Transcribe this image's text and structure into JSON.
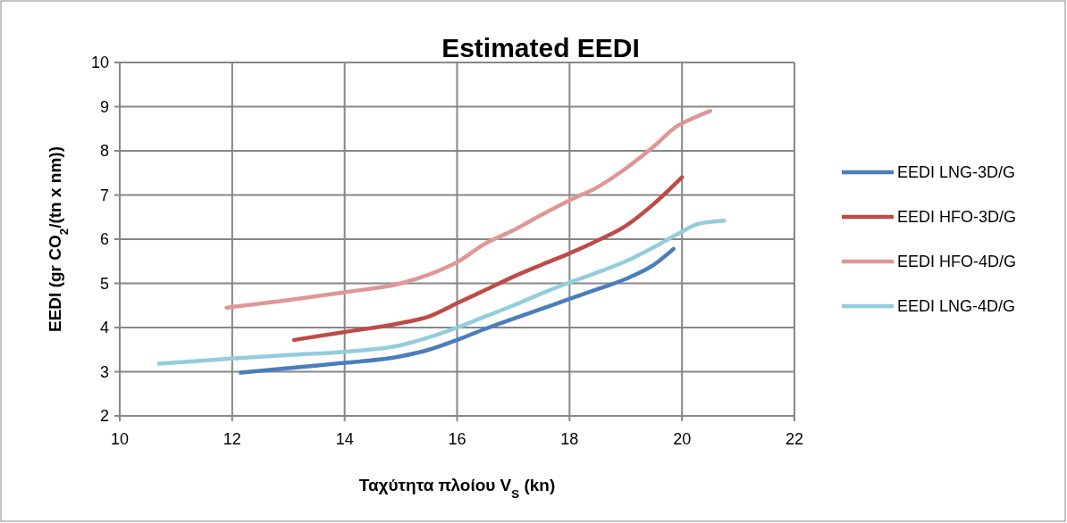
{
  "chart_data": {
    "type": "line",
    "title": "Estimated EEDI",
    "xlabel": "Ταχύτητα πλοίου V$_{S}$ (kn)",
    "ylabel": "EEDI (gr CO$_{2}$/(tn x nm))",
    "xlim": [
      10,
      22
    ],
    "xticks": [
      10,
      12,
      14,
      16,
      18,
      20,
      22
    ],
    "ylim": [
      2,
      10
    ],
    "yticks": [
      2,
      3,
      4,
      5,
      6,
      7,
      8,
      9,
      10
    ],
    "grid": true,
    "legend": "right",
    "marker": "none",
    "line_style": "solid",
    "series": [
      {
        "name": "EEDI LNG-3D/G",
        "color": "#4a7ebb",
        "x": [
          12.15,
          13,
          14,
          15,
          15.5,
          16,
          16.5,
          17,
          17.5,
          18,
          18.5,
          19,
          19.5,
          19.85
        ],
        "values": [
          2.98,
          3.08,
          3.2,
          3.35,
          3.5,
          3.72,
          3.97,
          4.2,
          4.42,
          4.65,
          4.87,
          5.1,
          5.42,
          5.78
        ]
      },
      {
        "name": "EEDI HFO-3D/G",
        "color": "#be4b48",
        "x": [
          13.1,
          14,
          15,
          15.5,
          16,
          16.5,
          17,
          17.5,
          18,
          18.5,
          19,
          19.5,
          20
        ],
        "values": [
          3.72,
          3.9,
          4.1,
          4.25,
          4.55,
          4.85,
          5.15,
          5.42,
          5.68,
          5.97,
          6.3,
          6.8,
          7.4
        ]
      },
      {
        "name": "EEDI HFO-4D/G",
        "color": "#dd9896",
        "x": [
          11.9,
          13,
          14,
          15,
          15.5,
          16,
          16.5,
          17,
          17.5,
          18,
          18.5,
          19,
          19.5,
          19.9,
          20.1,
          20.5
        ],
        "values": [
          4.45,
          4.62,
          4.8,
          5.0,
          5.2,
          5.48,
          5.9,
          6.2,
          6.55,
          6.88,
          7.18,
          7.6,
          8.1,
          8.55,
          8.68,
          8.9
        ]
      },
      {
        "name": "EEDI LNG-4D/G",
        "color": "#93cddd",
        "x": [
          10.7,
          12,
          13,
          14,
          15,
          15.5,
          16,
          16.5,
          17,
          17.5,
          18,
          18.5,
          19,
          19.5,
          19.9,
          20.3,
          20.75
        ],
        "values": [
          3.18,
          3.3,
          3.38,
          3.45,
          3.6,
          3.78,
          4.0,
          4.25,
          4.5,
          4.77,
          5.02,
          5.25,
          5.5,
          5.82,
          6.1,
          6.35,
          6.42
        ]
      }
    ]
  }
}
